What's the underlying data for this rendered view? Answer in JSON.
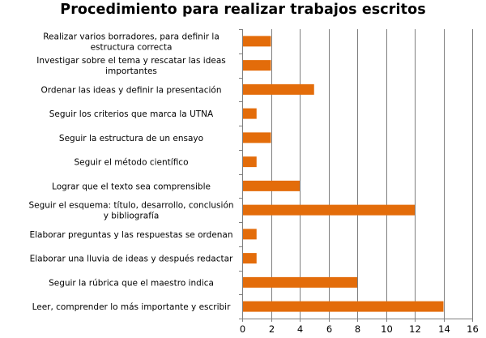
{
  "chart_data": {
    "type": "bar",
    "orientation": "horizontal",
    "title": "Procedimiento para realizar trabajos escritos",
    "categories": [
      [
        "Realizar varios borradores, para definir la",
        "estructura correcta"
      ],
      [
        "Investigar sobre el tema y rescatar las ideas",
        "importantes"
      ],
      [
        "Ordenar las ideas y definir la presentación"
      ],
      [
        "Seguir los criterios que marca la UTNA"
      ],
      [
        "Seguir la estructura de un ensayo"
      ],
      [
        "Seguir el método científico"
      ],
      [
        "Lograr que el texto sea comprensible"
      ],
      [
        "Seguir el esquema: título, desarrollo, conclusión",
        "y bibliografía"
      ],
      [
        "Elaborar preguntas y las respuestas se ordenan"
      ],
      [
        "Elaborar una lluvia de ideas y después redactar"
      ],
      [
        "Seguir la rúbrica que el maestro indica"
      ],
      [
        "Leer, comprender lo más importante y escribir"
      ]
    ],
    "values": [
      2,
      2,
      5,
      1,
      2,
      1,
      4,
      12,
      1,
      1,
      8,
      14
    ],
    "xlim": [
      0,
      16
    ],
    "xticks": [
      "0",
      "2",
      "4",
      "6",
      "8",
      "10",
      "12",
      "14",
      "16"
    ],
    "grid": true,
    "legend": "none",
    "bar_color": "#E36C0A",
    "grid_color": "#7f7f7f"
  }
}
